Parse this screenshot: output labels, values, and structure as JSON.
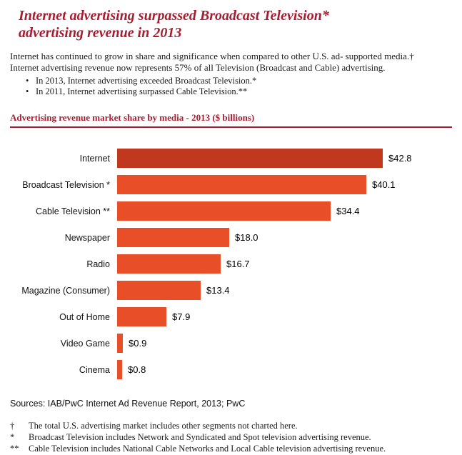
{
  "page": {
    "title_line1": "Internet advertising surpassed Broadcast Television*",
    "title_line2": "advertising revenue in 2013"
  },
  "intro": {
    "lines": [
      "Internet has continued to grow in share and significance when compared to other U.S. ad- supported media.†",
      "Internet advertising revenue now represents 57% of all Television (Broadcast and Cable) advertising."
    ],
    "bullets": [
      "In 2013, Internet advertising exceeded Broadcast Television.*",
      "In 2011, Internet advertising surpassed Cable Television.**"
    ]
  },
  "chart_heading": "Advertising revenue market share by media - 2013 ($ billions)",
  "chart_data": {
    "type": "bar",
    "orientation": "horizontal",
    "title": "Advertising revenue market share by media - 2013 ($ billions)",
    "categories": [
      "Internet",
      "Broadcast Television *",
      "Cable Television **",
      "Newspaper",
      "Radio",
      "Magazine (Consumer)",
      "Out of Home",
      "Video Game",
      "Cinema"
    ],
    "values": [
      42.8,
      40.1,
      34.4,
      18.0,
      16.7,
      13.4,
      7.9,
      0.9,
      0.8
    ],
    "value_labels": [
      "$42.8",
      "$40.1",
      "$34.4",
      "$18.0",
      "$16.7",
      "$13.4",
      "$7.9",
      "$0.9",
      "$0.8"
    ],
    "xlim": [
      0,
      45
    ],
    "grid": false,
    "legend": "none",
    "highlight_category": "Internet"
  },
  "colors": {
    "heading_red": "#a81c30",
    "bar_internet": "#c0391e",
    "bar_default": "#e84e28",
    "text": "#1a1a1a"
  },
  "sources": "Sources: IAB/PwC Internet Ad Revenue Report, 2013; PwC",
  "footnotes": [
    {
      "symbol": "†",
      "text": "The total U.S. advertising market includes other segments not charted here."
    },
    {
      "symbol": "*",
      "text": "Broadcast Television includes Network and Syndicated and Spot television advertising revenue."
    },
    {
      "symbol": "**",
      "text": "Cable Television includes National Cable Networks and Local Cable television advertising revenue."
    }
  ]
}
